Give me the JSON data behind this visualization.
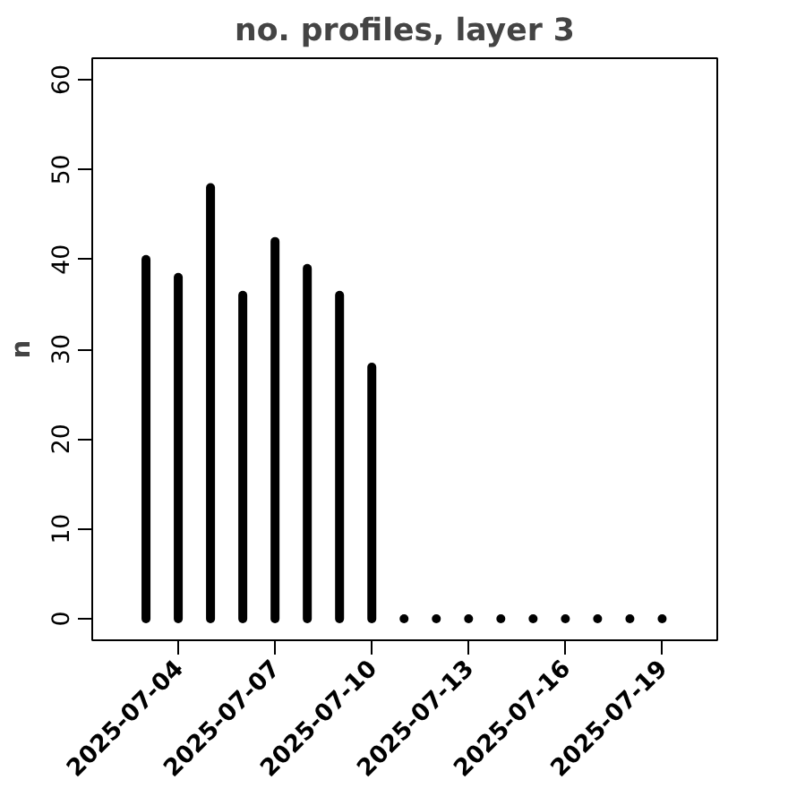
{
  "chart_data": {
    "type": "bar",
    "title": "no. profiles, layer 3",
    "ylabel": "n",
    "x": [
      "2025-07-03",
      "2025-07-04",
      "2025-07-05",
      "2025-07-06",
      "2025-07-07",
      "2025-07-08",
      "2025-07-09",
      "2025-07-10",
      "2025-07-11",
      "2025-07-12",
      "2025-07-13",
      "2025-07-14",
      "2025-07-15",
      "2025-07-16",
      "2025-07-17",
      "2025-07-18",
      "2025-07-19"
    ],
    "values": [
      40,
      38,
      48,
      36,
      42,
      39,
      36,
      28,
      0,
      0,
      0,
      0,
      0,
      0,
      0,
      0,
      0
    ],
    "color": "#000000",
    "xlim": [
      "2025-07-01T08:00",
      "2025-07-20T17:00"
    ],
    "xticks": [
      "2025-07-04",
      "2025-07-07",
      "2025-07-10",
      "2025-07-13",
      "2025-07-16",
      "2025-07-19"
    ],
    "ylim": [
      -2.4,
      62.4
    ],
    "yticks": [
      0,
      10,
      20,
      30,
      40,
      50,
      60
    ],
    "grid": false
  }
}
